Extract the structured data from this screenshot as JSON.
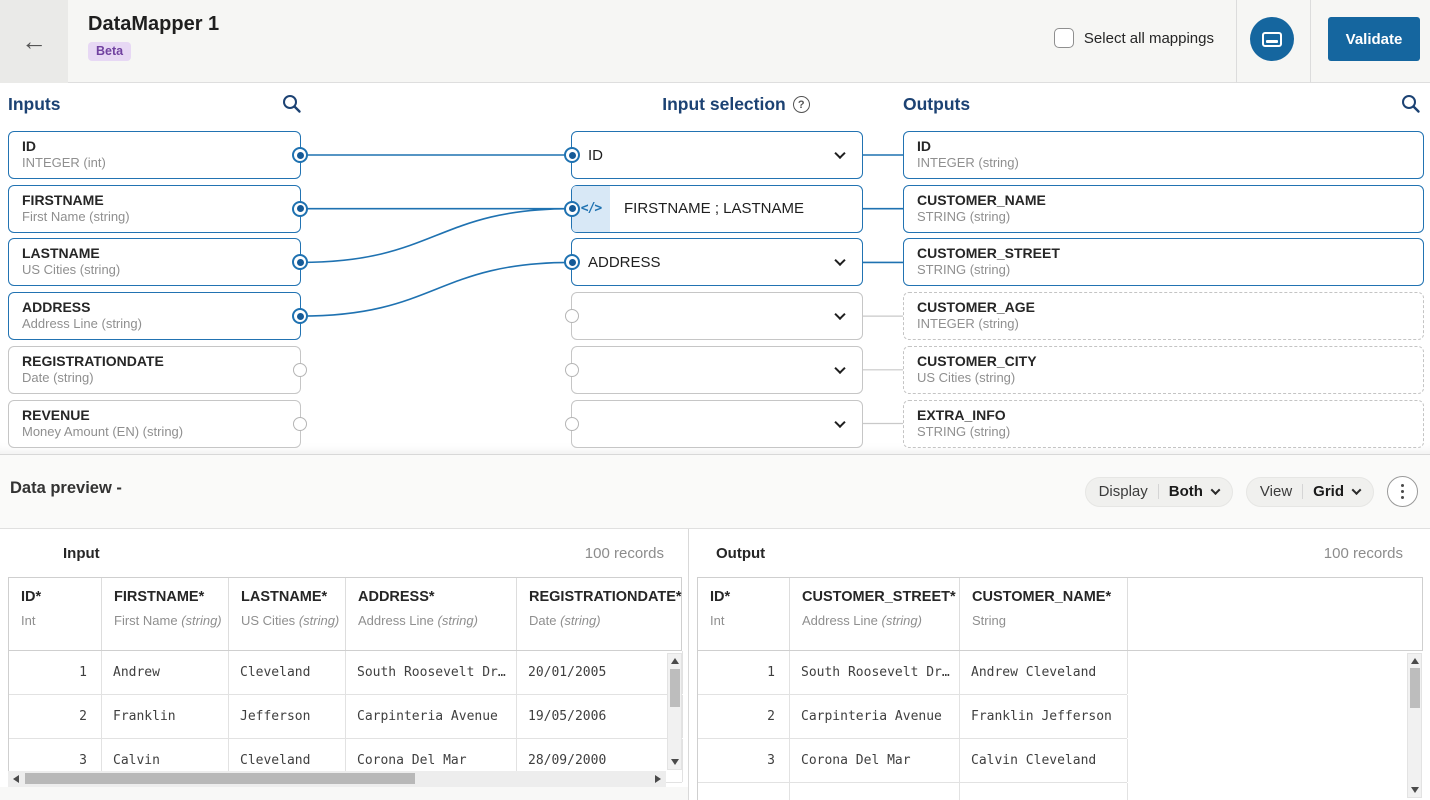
{
  "icons": {
    "back": "←",
    "code": "</>",
    "help": "?"
  },
  "header": {
    "title": "DataMapper 1",
    "badge": "Beta",
    "select_all_label": "Select all mappings",
    "validate_label": "Validate"
  },
  "mapper": {
    "inputs_heading": "Inputs",
    "selection_heading": "Input selection",
    "outputs_heading": "Outputs",
    "inputs": [
      {
        "name": "ID",
        "type": "INTEGER (int)",
        "connected": true
      },
      {
        "name": "FIRSTNAME",
        "type": "First Name (string)",
        "connected": true
      },
      {
        "name": "LASTNAME",
        "type": "US Cities (string)",
        "connected": true
      },
      {
        "name": "ADDRESS",
        "type": "Address Line (string)",
        "connected": true
      },
      {
        "name": "REGISTRATIONDATE",
        "type": "Date (string)",
        "connected": false
      },
      {
        "name": "REVENUE",
        "type": "Money Amount (EN) (string)",
        "connected": false
      }
    ],
    "selections": [
      {
        "value": "ID",
        "kind": "dropdown",
        "connected": true
      },
      {
        "value": "FIRSTNAME ; LASTNAME",
        "kind": "expression",
        "connected": true
      },
      {
        "value": "ADDRESS",
        "kind": "dropdown",
        "connected": true
      },
      {
        "value": "",
        "kind": "dropdown",
        "connected": false
      },
      {
        "value": "",
        "kind": "dropdown",
        "connected": false
      },
      {
        "value": "",
        "kind": "dropdown",
        "connected": false
      }
    ],
    "outputs": [
      {
        "name": "ID",
        "type": "INTEGER (string)",
        "mapped": true
      },
      {
        "name": "CUSTOMER_NAME",
        "type": "STRING (string)",
        "mapped": true
      },
      {
        "name": "CUSTOMER_STREET",
        "type": "STRING (string)",
        "mapped": true
      },
      {
        "name": "CUSTOMER_AGE",
        "type": "INTEGER (string)",
        "mapped": false
      },
      {
        "name": "CUSTOMER_CITY",
        "type": "US Cities (string)",
        "mapped": false
      },
      {
        "name": "EXTRA_INFO",
        "type": "STRING (string)",
        "mapped": false
      }
    ],
    "links": [
      {
        "from": 0,
        "to": 0
      },
      {
        "from": 1,
        "to": 1
      },
      {
        "from": 2,
        "to": 1
      },
      {
        "from": 3,
        "to": 2
      }
    ]
  },
  "preview": {
    "title": "Data preview -",
    "display_label": "Display",
    "display_value": "Both",
    "view_label": "View",
    "view_value": "Grid",
    "input": {
      "title": "Input",
      "records": "100 records",
      "columns": [
        {
          "name": "ID*",
          "base": "Int",
          "suffix": ""
        },
        {
          "name": "FIRSTNAME*",
          "base": "First Name",
          "suffix": "(string)"
        },
        {
          "name": "LASTNAME*",
          "base": "US Cities",
          "suffix": "(string)"
        },
        {
          "name": "ADDRESS*",
          "base": "Address Line",
          "suffix": "(string)"
        },
        {
          "name": "REGISTRATIONDATE*",
          "base": "Date",
          "suffix": "(string)"
        }
      ],
      "rows": [
        [
          "1",
          "Andrew",
          "Cleveland",
          "South Roosevelt Dr…",
          "20/01/2005"
        ],
        [
          "2",
          "Franklin",
          "Jefferson",
          "Carpinteria Avenue",
          "19/05/2006"
        ],
        [
          "3",
          "Calvin",
          "Cleveland",
          "Corona Del Mar",
          "28/09/2000"
        ]
      ]
    },
    "output": {
      "title": "Output",
      "records": "100 records",
      "columns": [
        {
          "name": "ID*",
          "base": "Int",
          "suffix": ""
        },
        {
          "name": "CUSTOMER_STREET*",
          "base": "Address Line",
          "suffix": "(string)"
        },
        {
          "name": "CUSTOMER_NAME*",
          "base": "String",
          "suffix": ""
        }
      ],
      "rows": [
        [
          "1",
          "South Roosevelt Dr…",
          "Andrew Cleveland"
        ],
        [
          "2",
          "Carpinteria Avenue",
          "Franklin Jefferson"
        ],
        [
          "3",
          "Corona Del Mar",
          "Calvin Cleveland"
        ]
      ]
    }
  }
}
